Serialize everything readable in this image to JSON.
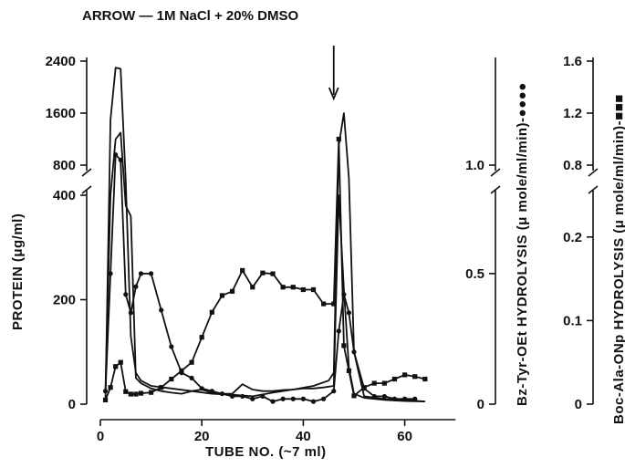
{
  "chart_data": {
    "type": "line",
    "title": "ARROW — 1M NaCl + 20% DMSO",
    "xlabel": "TUBE NO. (~7 ml)",
    "ylabel": "PROTEIN (μg/ml)",
    "y2label": "Bz-Tyr-OEt HYDROLYSIS (μ mole/ml/min)-●●●●",
    "y3label": "Boc-Ala-ONp HYDROLYSIS (μ mole/ml/min)-■■■",
    "arrow_at_tube": 46,
    "x_ticks": [
      0,
      20,
      40,
      60
    ],
    "xlim": [
      0,
      70
    ],
    "axes": {
      "left": {
        "lower": {
          "range": [
            0,
            400
          ],
          "ticks": [
            0,
            200,
            400
          ]
        },
        "upper": {
          "range": [
            800,
            2400
          ],
          "ticks": [
            800,
            1600,
            2400
          ]
        }
      },
      "bz": {
        "lower": {
          "range": [
            0,
            0.8
          ],
          "ticks": [
            0,
            0.5
          ],
          "tick_labels": [
            "0",
            "0.5"
          ]
        },
        "upper": {
          "range": [
            1.0,
            2.0
          ],
          "ticks": [
            1.0
          ],
          "tick_labels": [
            "1.0"
          ]
        }
      },
      "boc": {
        "lower": {
          "range": [
            0,
            0.25
          ],
          "ticks": [
            0,
            0.1,
            0.2
          ],
          "tick_labels": [
            "0",
            "0.1",
            "0.2"
          ]
        },
        "upper": {
          "range": [
            0.8,
            1.6
          ],
          "ticks": [
            0.8,
            1.2,
            1.6
          ],
          "tick_labels": [
            "0.8",
            "1.2",
            "1.6"
          ]
        }
      }
    },
    "series": [
      {
        "axis": "left",
        "marker": "none",
        "x": [
          1,
          2,
          3,
          4,
          5,
          6,
          7,
          8,
          10,
          14,
          18,
          22,
          26,
          30,
          34,
          38,
          42,
          45,
          46,
          47,
          48,
          49,
          50,
          52,
          56,
          60,
          64
        ],
        "y": [
          10,
          1500,
          2300,
          2280,
          560,
          130,
          60,
          45,
          35,
          30,
          25,
          20,
          18,
          15,
          22,
          28,
          35,
          45,
          60,
          1100,
          1600,
          600,
          100,
          15,
          10,
          8,
          5
        ]
      },
      {
        "axis": "left",
        "marker": "none",
        "x": [
          1,
          2,
          3,
          4,
          5,
          6,
          7,
          8,
          10,
          12,
          14,
          16,
          18,
          20,
          22,
          24,
          26,
          28,
          30,
          32,
          34,
          36,
          38,
          40,
          42,
          44,
          46,
          47,
          48,
          49,
          50,
          52,
          56,
          60,
          64
        ],
        "y": [
          30,
          400,
          1200,
          1300,
          380,
          360,
          50,
          40,
          30,
          25,
          22,
          20,
          25,
          28,
          22,
          20,
          20,
          38,
          28,
          25,
          25,
          27,
          28,
          30,
          30,
          32,
          35,
          400,
          220,
          70,
          20,
          12,
          8,
          6,
          5
        ]
      },
      {
        "axis": "bz",
        "marker": "circle",
        "x": [
          1,
          2,
          3,
          4,
          5,
          6,
          7,
          8,
          10,
          12,
          14,
          16,
          18,
          20,
          22,
          24,
          26,
          28,
          30,
          32,
          34,
          36,
          38,
          40,
          42,
          44,
          46,
          47,
          48,
          49,
          50,
          52,
          54,
          56,
          58,
          60,
          62
        ],
        "y": [
          0.05,
          0.5,
          1.1,
          1.05,
          0.42,
          0.35,
          0.45,
          0.5,
          0.5,
          0.36,
          0.22,
          0.12,
          0.1,
          0.06,
          0.05,
          0.04,
          0.03,
          0.03,
          0.02,
          0.03,
          0.01,
          0.02,
          0.02,
          0.02,
          0.01,
          0.02,
          0.05,
          0.28,
          0.42,
          0.35,
          0.2,
          0.06,
          0.03,
          0.03,
          0.02,
          0.02,
          0.02
        ]
      },
      {
        "axis": "boc",
        "marker": "square",
        "x": [
          1,
          2,
          3,
          4,
          5,
          6,
          7,
          8,
          10,
          12,
          14,
          16,
          18,
          20,
          22,
          24,
          26,
          28,
          30,
          32,
          34,
          36,
          38,
          40,
          42,
          44,
          46,
          47,
          48,
          49,
          50,
          52,
          54,
          56,
          58,
          60,
          62,
          64
        ],
        "y": [
          0.005,
          0.02,
          0.045,
          0.05,
          0.015,
          0.012,
          0.012,
          0.013,
          0.014,
          0.02,
          0.03,
          0.04,
          0.05,
          0.08,
          0.11,
          0.13,
          0.135,
          0.16,
          0.14,
          0.157,
          0.156,
          0.14,
          0.14,
          0.137,
          0.137,
          0.12,
          0.12,
          1.0,
          0.07,
          0.04,
          0.01,
          0.02,
          0.025,
          0.025,
          0.03,
          0.035,
          0.033,
          0.03
        ]
      }
    ]
  }
}
